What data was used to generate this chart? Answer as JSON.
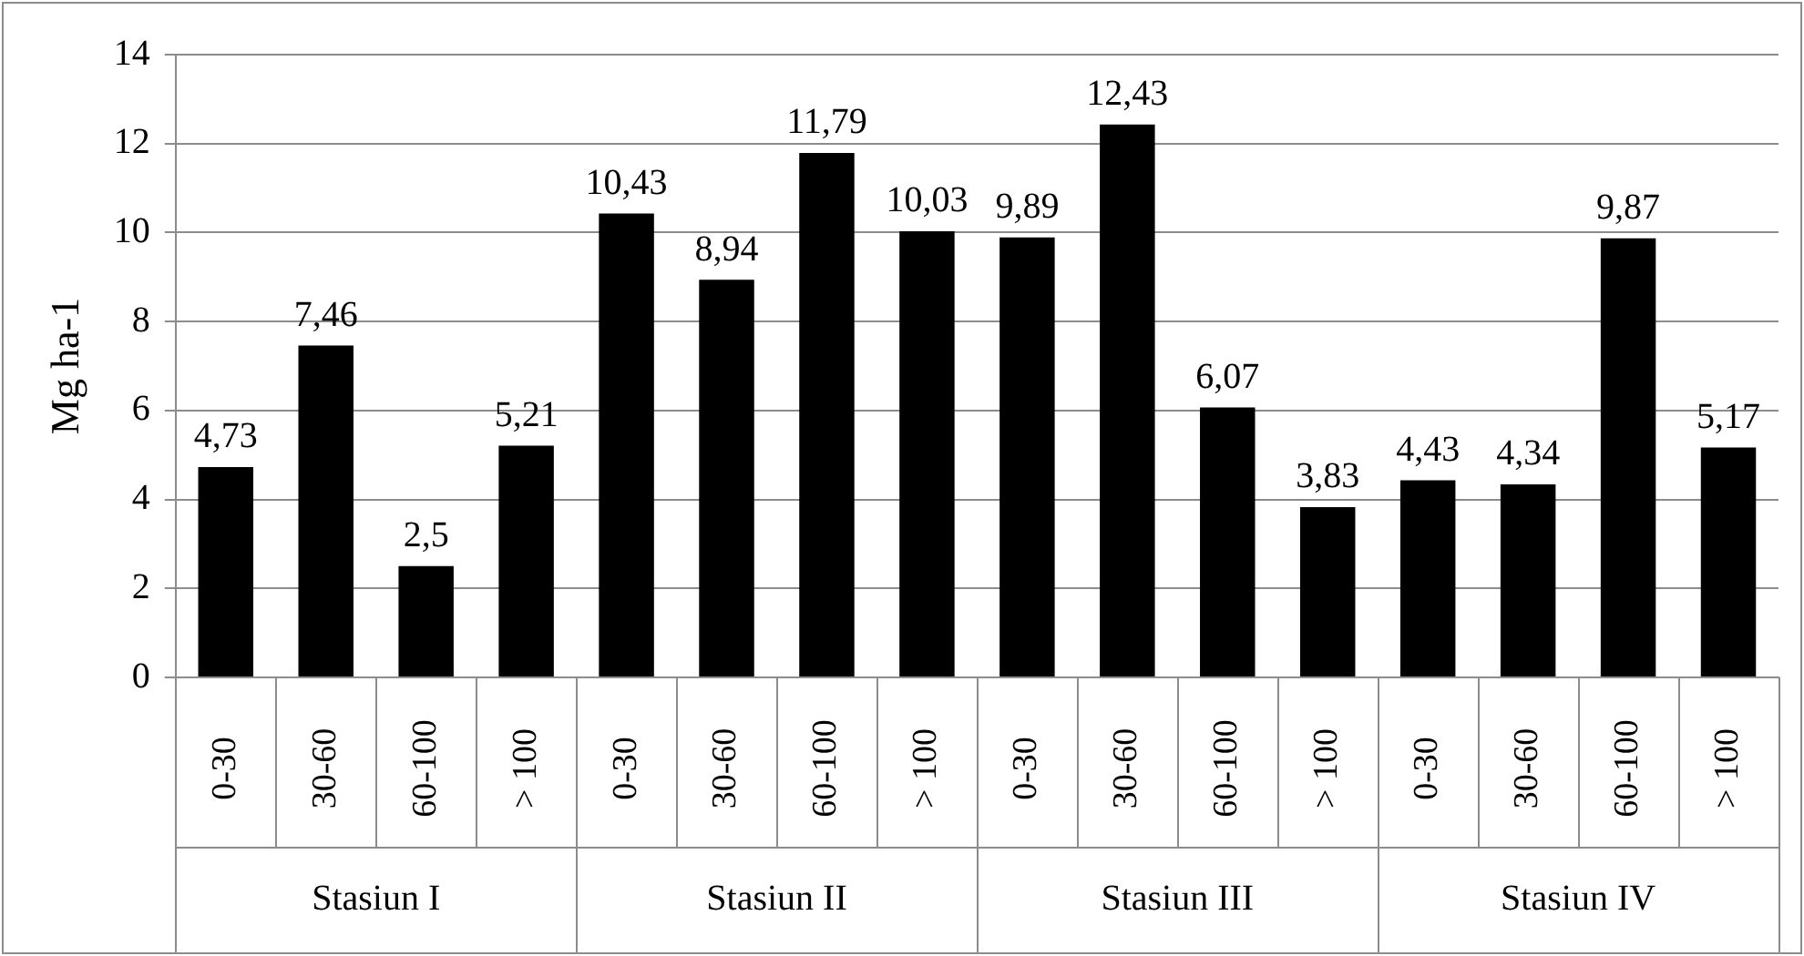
{
  "chart_data": {
    "type": "bar",
    "ylabel": "Mg ha-1",
    "categories": [
      "0-30",
      "30-60",
      "60-100",
      "> 100",
      "0-30",
      "30-60",
      "60-100",
      "> 100",
      "0-30",
      "30-60",
      "60-100",
      "> 100",
      "0-30",
      "30-60",
      "60-100",
      "> 100"
    ],
    "annotations": [
      "Stasiun I",
      "Stasiun II",
      "Stasiun III",
      "Stasiun IV"
    ],
    "values": [
      4.73,
      7.46,
      2.5,
      5.21,
      10.43,
      8.94,
      11.79,
      10.03,
      9.89,
      12.43,
      6.07,
      3.83,
      4.43,
      4.34,
      9.87,
      5.17
    ],
    "value_labels": [
      "4,73",
      "7,46",
      "2,5",
      "5,21",
      "10,43",
      "8,94",
      "11,79",
      "10,03",
      "9,89",
      "12,43",
      "6,07",
      "3,83",
      "4,43",
      "4,34",
      "9,87",
      "5,17"
    ],
    "color": "#000000",
    "ylim": [
      0,
      14
    ],
    "yticks": [
      0,
      2,
      4,
      6,
      8,
      10,
      12,
      14
    ],
    "grid": "y",
    "legend": false
  }
}
